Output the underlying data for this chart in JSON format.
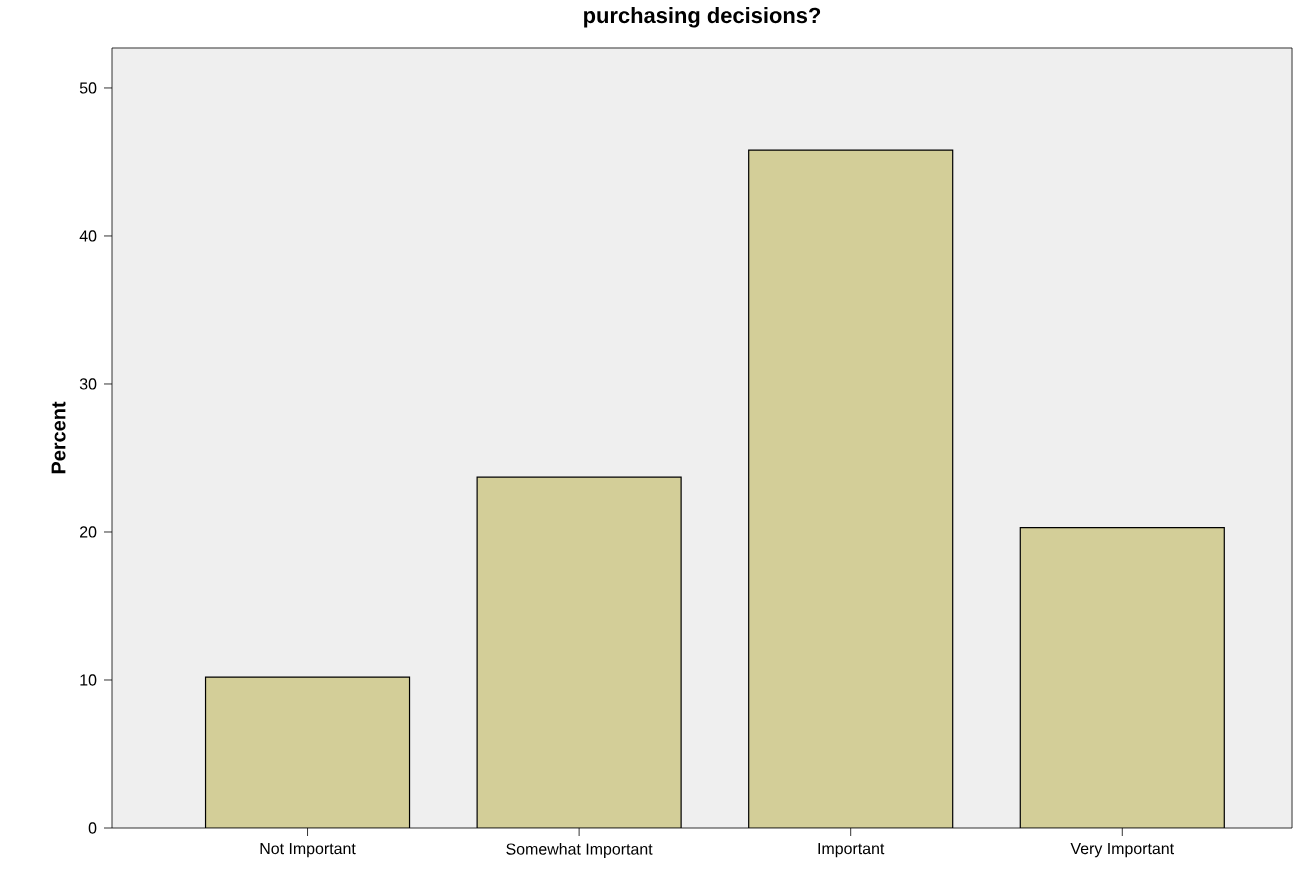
{
  "chart_data": {
    "type": "bar",
    "title": "purchasing decisions?",
    "ylabel": "Percent",
    "categories": [
      "Not Important",
      "Somewhat Important",
      "Important",
      "Very Important"
    ],
    "values": [
      10.2,
      23.7,
      45.8,
      20.3
    ],
    "color": "#d3ce98",
    "ylim": [
      0,
      52.7
    ],
    "yticks": [
      0,
      10,
      20,
      30,
      40,
      50
    ],
    "grid": false
  }
}
